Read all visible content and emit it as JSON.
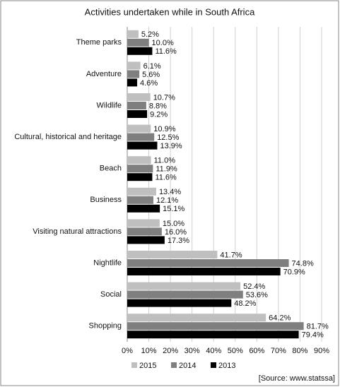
{
  "chart_data": {
    "type": "bar",
    "title": "Activities undertaken while in South Africa",
    "categories": [
      "Theme parks",
      "Adventure",
      "Wildlife",
      "Cultural, historical and heritage",
      "Beach",
      "Business",
      "Visiting natural attractions",
      "Nightlife",
      "Social",
      "Shopping"
    ],
    "series": [
      {
        "name": "2015",
        "color": "#bfbfbf",
        "values": [
          5.2,
          6.1,
          10.7,
          10.9,
          11.0,
          13.4,
          15.0,
          41.7,
          52.4,
          64.2
        ],
        "value_labels": [
          "5.2%",
          "6.1%",
          "10.7%",
          "10.9%",
          "11.0%",
          "13.4%",
          "15.0%",
          "41.7%",
          "52.4%",
          "64.2%"
        ]
      },
      {
        "name": "2014",
        "color": "#7f7f7f",
        "values": [
          10.0,
          5.6,
          8.8,
          12.5,
          11.9,
          12.1,
          16.0,
          74.8,
          53.6,
          81.7
        ],
        "value_labels": [
          "10.0%",
          "5.6%",
          "8.8%",
          "12.5%",
          "11.9%",
          "12.1%",
          "16.0%",
          "74.8%",
          "53.6%",
          "81.7%"
        ]
      },
      {
        "name": "2013",
        "color": "#000000",
        "values": [
          11.6,
          4.6,
          9.2,
          13.9,
          11.6,
          15.1,
          17.3,
          70.9,
          48.2,
          79.4
        ],
        "value_labels": [
          "11.6%",
          "4.6%",
          "9.2%",
          "13.9%",
          "11.6%",
          "15.1%",
          "17.3%",
          "70.9%",
          "48.2%",
          "79.4%"
        ]
      }
    ],
    "xlim": [
      0,
      90
    ],
    "xticks": [
      {
        "value": 0,
        "label": "0%"
      },
      {
        "value": 10,
        "label": "10%"
      },
      {
        "value": 20,
        "label": "20%"
      },
      {
        "value": 30,
        "label": "30%"
      },
      {
        "value": 40,
        "label": "40%"
      },
      {
        "value": 50,
        "label": "50%"
      },
      {
        "value": 60,
        "label": "60%"
      },
      {
        "value": 70,
        "label": "70%"
      },
      {
        "value": 80,
        "label": "80%"
      },
      {
        "value": 90,
        "label": "90%"
      }
    ],
    "grid": true,
    "source": "[Source: www.statssa]"
  }
}
